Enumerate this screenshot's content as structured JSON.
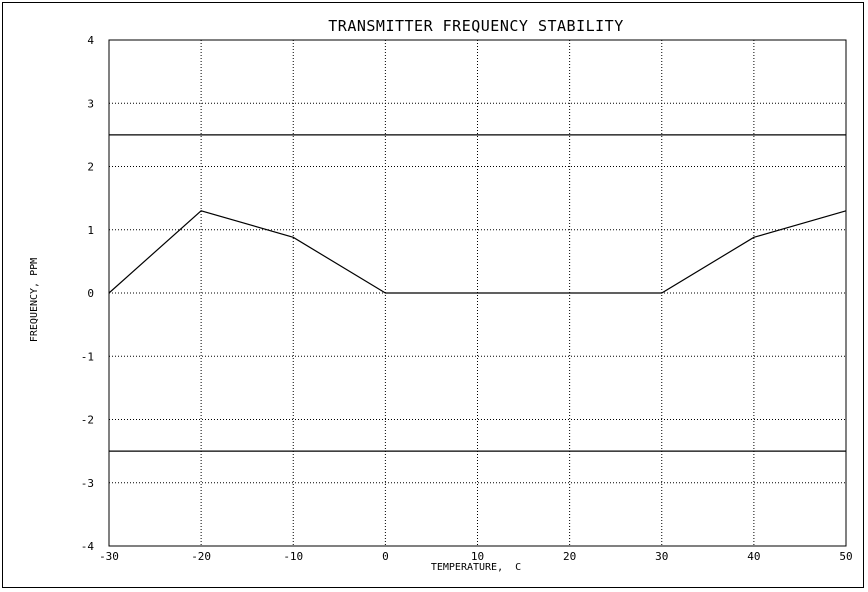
{
  "chart_data": {
    "type": "line",
    "title": "TRANSMITTER FREQUENCY STABILITY",
    "xlabel": "TEMPERATURE,  C",
    "ylabel": "FREQUENCY, PPM",
    "xlim": [
      -30,
      50
    ],
    "ylim": [
      -4,
      4
    ],
    "x_ticks": [
      -30,
      -20,
      -10,
      0,
      10,
      20,
      30,
      40,
      50
    ],
    "y_ticks": [
      4,
      3,
      2,
      1,
      0,
      -1,
      -2,
      -3,
      -4
    ],
    "x_tick_labels": [
      "-30",
      "-20",
      "-10",
      "0",
      "10",
      "20",
      "30",
      "40",
      "50"
    ],
    "y_tick_labels": [
      "4",
      "3",
      "2",
      "1",
      "0",
      "-1",
      "-2",
      "-3",
      "-4"
    ],
    "grid": true,
    "legend": "none",
    "series": [
      {
        "x": [
          -30,
          -20,
          -10,
          0,
          10,
          20,
          30,
          40,
          50
        ],
        "values": [
          0,
          1.3,
          0.88,
          0,
          0,
          0,
          0,
          0.88,
          1.3
        ]
      }
    ],
    "reference_lines": [
      {
        "y": 2.5
      },
      {
        "y": -2.5
      }
    ],
    "colors": {
      "line": "#000000",
      "grid": "#000000",
      "background": "#ffffff"
    }
  }
}
